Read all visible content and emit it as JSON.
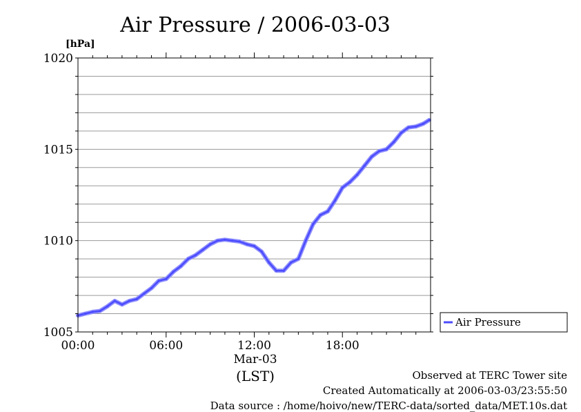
{
  "chart_data": {
    "type": "line",
    "title": "Air Pressure / 2006-03-03",
    "ylabel": "[hPa]",
    "xlabel": "(LST)",
    "ylim": [
      1005,
      1020
    ],
    "xlim": [
      0,
      24
    ],
    "yticks": [
      {
        "value": 1005,
        "label": "1005"
      },
      {
        "value": 1010,
        "label": "1010"
      },
      {
        "value": 1015,
        "label": "1015"
      },
      {
        "value": 1020,
        "label": "1020"
      }
    ],
    "xticks": [
      {
        "value": 0,
        "label": "00:00"
      },
      {
        "value": 6,
        "label": "06:00"
      },
      {
        "value": 12,
        "label": "12:00"
      },
      {
        "value": 18,
        "label": "18:00"
      }
    ],
    "date_label": "Mar-03",
    "grid": true,
    "legend_position": "right",
    "series": [
      {
        "name": "Air Pressure",
        "color": "#4b4bff",
        "x": [
          0,
          0.5,
          1.0,
          1.5,
          2.0,
          2.5,
          3.0,
          3.5,
          4.0,
          4.5,
          5.0,
          5.5,
          6.0,
          6.5,
          7.0,
          7.5,
          8.0,
          8.5,
          9.0,
          9.5,
          10.0,
          10.5,
          11.0,
          11.5,
          12.0,
          12.5,
          13.0,
          13.5,
          14.0,
          14.5,
          15.0,
          15.5,
          16.0,
          16.5,
          17.0,
          17.5,
          18.0,
          18.5,
          19.0,
          19.5,
          20.0,
          20.5,
          21.0,
          21.5,
          22.0,
          22.5,
          23.0,
          23.5,
          23.9
        ],
        "values": [
          1005.9,
          1006.0,
          1006.1,
          1006.15,
          1006.4,
          1006.7,
          1006.5,
          1006.7,
          1006.8,
          1007.1,
          1007.4,
          1007.8,
          1007.9,
          1008.3,
          1008.6,
          1009.0,
          1009.2,
          1009.5,
          1009.8,
          1010.0,
          1010.05,
          1010.0,
          1009.95,
          1009.8,
          1009.7,
          1009.4,
          1008.8,
          1008.35,
          1008.35,
          1008.8,
          1009.0,
          1010.0,
          1010.9,
          1011.4,
          1011.6,
          1012.2,
          1012.9,
          1013.2,
          1013.6,
          1014.1,
          1014.6,
          1014.9,
          1015.0,
          1015.4,
          1015.9,
          1016.2,
          1016.25,
          1016.4,
          1016.6
        ]
      }
    ]
  },
  "footer": {
    "line1": "Observed at TERC Tower site",
    "line2": "Created Automatically at 2006-03-03/23:55:50",
    "line3": "Data source : /home/hoivo/new/TERC-data/sorted_data/MET.10s.dat"
  }
}
